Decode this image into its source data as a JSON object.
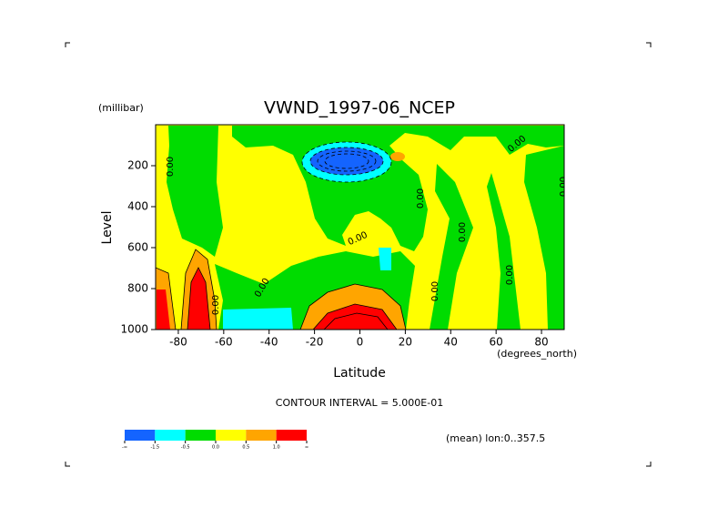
{
  "chart_data": {
    "type": "contour",
    "title": "VWND_1997-06_NCEP",
    "y_unit": "(millibar)",
    "y_label": "Level",
    "x_label": "Latitude",
    "x_unit": "(degrees_north)",
    "contour_interval": "CONTOUR INTERVAL = 5.000E-01",
    "note": "(mean) lon:0..357.5",
    "xlim": [
      -90,
      90
    ],
    "xticks": [
      -80,
      -60,
      -40,
      -20,
      0,
      20,
      40,
      60,
      80
    ],
    "ylim": [
      1000,
      0
    ],
    "yticks": [
      200,
      400,
      600,
      800,
      1000
    ],
    "levels": [
      "-∞",
      -1.5,
      -0.5,
      {
        "value": 0,
        "label": "0.0"
      },
      0.5,
      {
        "value": 1,
        "label": "1.0"
      },
      "∞"
    ],
    "colors": [
      "#1464ff",
      "#00ffff",
      "#00dc00",
      "#ffff00",
      "#ffa500",
      "#ff0000"
    ],
    "contour_labels": [
      "0.00",
      "0.00",
      "0.00",
      "0.00",
      "0.00",
      "0.00",
      "0.00",
      "0.00",
      "0.00",
      "0.00"
    ]
  }
}
